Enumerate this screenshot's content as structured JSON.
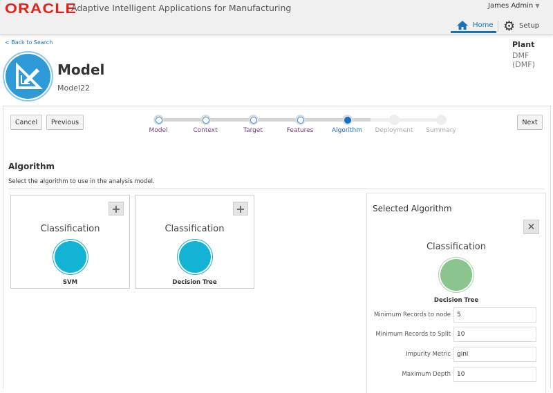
{
  "header": {
    "logo": "ORACLE",
    "app_title": "Adaptive Intelligent Applications for Manufacturing",
    "user": "James Admin",
    "tabs": [
      {
        "label": "Home",
        "icon": "home-icon",
        "active": true
      },
      {
        "label": "Setup",
        "icon": "gear-icon"
      }
    ]
  },
  "back_link": "< Back to Search",
  "plant": {
    "label": "Plant",
    "value": "DMF (DMF)"
  },
  "page": {
    "title": "Model",
    "subtitle": "Model22",
    "icon": "model-edit-icon"
  },
  "buttons": {
    "cancel": "Cancel",
    "previous": "Previous",
    "next": "Next"
  },
  "train": [
    {
      "label": "Model",
      "state": "visited"
    },
    {
      "label": "Context",
      "state": "visited"
    },
    {
      "label": "Target",
      "state": "visited"
    },
    {
      "label": "Features",
      "state": "visited"
    },
    {
      "label": "Algorithm",
      "state": "current"
    },
    {
      "label": "Deployment",
      "state": "disabled"
    },
    {
      "label": "Summary",
      "state": "disabled"
    }
  ],
  "section": {
    "title": "Algorithm",
    "description": "Select the algorithm to use in the analysis model."
  },
  "cards": [
    {
      "type": "Classification",
      "name": "SVM",
      "color": "#13b3d3"
    },
    {
      "type": "Classification",
      "name": "Decision Tree",
      "color": "#13b3d3"
    }
  ],
  "selected": {
    "title": "Selected Algorithm",
    "type": "Classification",
    "name": "Decision Tree",
    "color": "#8bc48d",
    "fields": [
      {
        "label": "Minimum Records to node",
        "value": "5"
      },
      {
        "label": "Minimum Records to Split",
        "value": "10"
      },
      {
        "label": "Impurity Metric",
        "value": "gini"
      },
      {
        "label": "Maximum Depth",
        "value": "10"
      }
    ]
  }
}
